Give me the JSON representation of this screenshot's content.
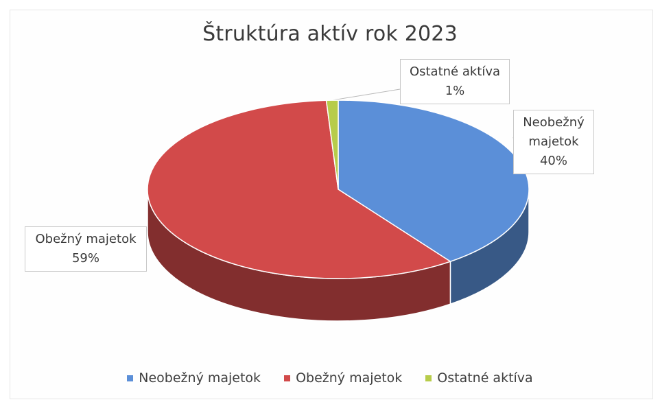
{
  "chart_data": {
    "type": "pie",
    "title": "Štruktúra aktív rok 2023",
    "style": "3d",
    "legend_position": "bottom",
    "slices": [
      {
        "name": "Neobežný majetok",
        "label_lines": [
          "Neobežný",
          "majetok"
        ],
        "value": 40,
        "value_label": "40%",
        "color": "#5b8fd8"
      },
      {
        "name": "Obežný majetok",
        "label_lines": [
          "Obežný majetok"
        ],
        "value": 59,
        "value_label": "59%",
        "color": "#d24a4a"
      },
      {
        "name": "Ostatné aktíva",
        "label_lines": [
          "Ostatné aktíva"
        ],
        "value": 1,
        "value_label": "1%",
        "color": "#b7cc4a"
      }
    ]
  }
}
